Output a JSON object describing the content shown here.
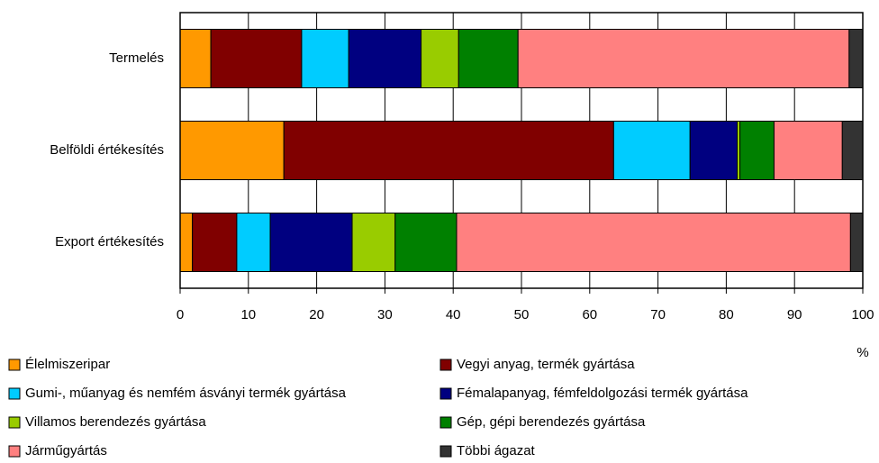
{
  "chart_data": {
    "type": "stacked-bar-horizontal",
    "categories": [
      "Termelés",
      "Belföldi értékesítés",
      "Export értékesítés"
    ],
    "x_label": "%",
    "xlim": [
      0,
      100
    ],
    "xticks": [
      0,
      10,
      20,
      30,
      40,
      50,
      60,
      70,
      80,
      90,
      100
    ],
    "grid": true,
    "series": [
      {
        "name": "Élelmiszeripar",
        "color": "#FF9900",
        "values": [
          4.5,
          15.2,
          1.8
        ]
      },
      {
        "name": "Vegyi anyag, termék gyártása",
        "color": "#800000",
        "values": [
          13.3,
          48.3,
          6.5
        ]
      },
      {
        "name": "Gumi-, műanyag és nemfém ásványi termék gyártása",
        "color": "#00CCFF",
        "values": [
          6.9,
          11.2,
          4.9
        ]
      },
      {
        "name": "Fémalapanyag, fémfeldolgozási termék gyártása",
        "color": "#000080",
        "values": [
          10.6,
          6.9,
          12.0
        ]
      },
      {
        "name": "Villamos berendezés gyártása",
        "color": "#99CC00",
        "values": [
          5.5,
          0.4,
          6.3
        ]
      },
      {
        "name": "Gép, gépi berendezés gyártása",
        "color": "#008000",
        "values": [
          8.7,
          5.0,
          9.0
        ]
      },
      {
        "name": "Járműgyártás",
        "color": "#FF8080",
        "values": [
          48.5,
          10.0,
          57.7
        ]
      },
      {
        "name": "Többi ágazat",
        "color": "#333333",
        "values": [
          2.0,
          3.0,
          1.8
        ]
      }
    ]
  }
}
